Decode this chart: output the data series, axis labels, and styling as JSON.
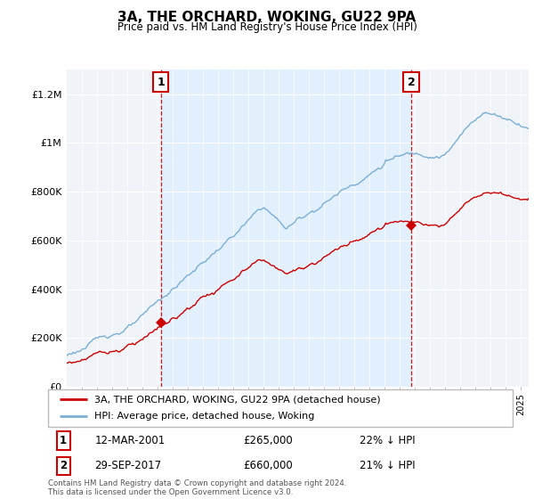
{
  "title": "3A, THE ORCHARD, WOKING, GU22 9PA",
  "subtitle": "Price paid vs. HM Land Registry's House Price Index (HPI)",
  "ylim": [
    0,
    1300000
  ],
  "yticks": [
    0,
    200000,
    400000,
    600000,
    800000,
    1000000,
    1200000
  ],
  "ytick_labels": [
    "£0",
    "£200K",
    "£400K",
    "£600K",
    "£800K",
    "£1M",
    "£1.2M"
  ],
  "sale1_year": 2001.2,
  "sale1_price": 265000,
  "sale1_label": "1",
  "sale1_date": "12-MAR-2001",
  "sale1_pct": "22% ↓ HPI",
  "sale2_year": 2017.75,
  "sale2_price": 660000,
  "sale2_label": "2",
  "sale2_date": "29-SEP-2017",
  "sale2_pct": "21% ↓ HPI",
  "line_color_property": "#cc0000",
  "line_color_hpi": "#7bafd4",
  "shade_color": "#ddeeff",
  "vline_color": "#cc0000",
  "legend_label_property": "3A, THE ORCHARD, WOKING, GU22 9PA (detached house)",
  "legend_label_hpi": "HPI: Average price, detached house, Woking",
  "footer": "Contains HM Land Registry data © Crown copyright and database right 2024.\nThis data is licensed under the Open Government Licence v3.0.",
  "background_color": "#ffffff",
  "plot_background": "#f0f4f8",
  "xmin": 1995.0,
  "xmax": 2025.5
}
